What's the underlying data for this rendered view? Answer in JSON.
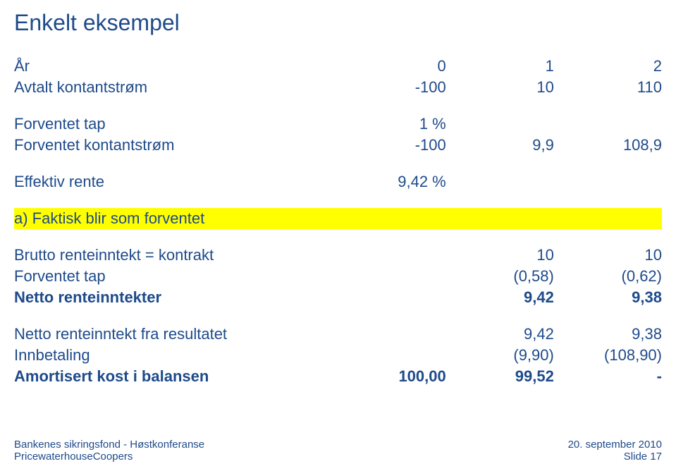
{
  "title": {
    "text": "Enkelt eksempel",
    "fontsize": 32,
    "color": "#1e4a8a"
  },
  "colors": {
    "text": "#1e4a8a",
    "highlight": "#ffff00",
    "background": "#ffffff"
  },
  "fontsize_body": 22,
  "rows": [
    {
      "label": "År",
      "c0": "0",
      "c1": "1",
      "c2": "2"
    },
    {
      "label": "Avtalt kontantstrøm",
      "c0": "-100",
      "c1": "10",
      "c2": "110"
    },
    {
      "spacer": true
    },
    {
      "label": "Forventet tap",
      "c0": "1 %",
      "c1": "",
      "c2": ""
    },
    {
      "label": "Forventet kontantstrøm",
      "c0": "-100",
      "c1": "9,9",
      "c2": "108,9"
    },
    {
      "spacer": true
    },
    {
      "label": "Effektiv rente",
      "c0": "9,42 %",
      "c1": "",
      "c2": ""
    },
    {
      "spacer": true
    },
    {
      "label": "a) Faktisk blir som forventet",
      "c0": "",
      "c1": "",
      "c2": "",
      "hl": true
    },
    {
      "spacer": true
    },
    {
      "label": "Brutto renteinntekt = kontrakt",
      "c0": "",
      "c1": "10",
      "c2": "10"
    },
    {
      "label": "Forventet tap",
      "c0": "",
      "c1": "(0,58)",
      "c2": "(0,62)"
    },
    {
      "label": "Netto renteinntekter",
      "c0": "",
      "c1": "9,42",
      "c2": "9,38",
      "bold": true
    },
    {
      "spacer": true
    },
    {
      "label": "Netto renteinntekt fra resultatet",
      "c0": "",
      "c1": "9,42",
      "c2": "9,38"
    },
    {
      "label": "Innbetaling",
      "c0": "",
      "c1": "(9,90)",
      "c2": "(108,90)"
    },
    {
      "label": "Amortisert kost i balansen",
      "c0": "100,00",
      "c1": "99,52",
      "c2": "-",
      "bold": true
    }
  ],
  "footer": {
    "left_line1": "Bankenes sikringsfond - Høstkonferanse",
    "left_line2": "PricewaterhouseCoopers",
    "right_line1": "20. september 2010",
    "right_line2": "Slide 17"
  }
}
